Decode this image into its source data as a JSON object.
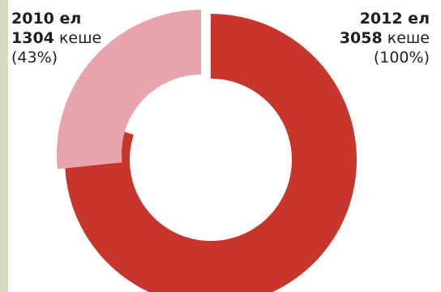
{
  "chart_data": {
    "type": "pie",
    "series": [
      {
        "name": "2010 ел",
        "value": 1304,
        "unit": "кеше",
        "percent_text": "(43%)",
        "percent": 43,
        "color": "#e8a4ab"
      },
      {
        "name": "2012 ел",
        "value": 3058,
        "unit": "кеше",
        "percent_text": "(100%)",
        "percent": 100,
        "color": "#c8352c"
      }
    ]
  }
}
